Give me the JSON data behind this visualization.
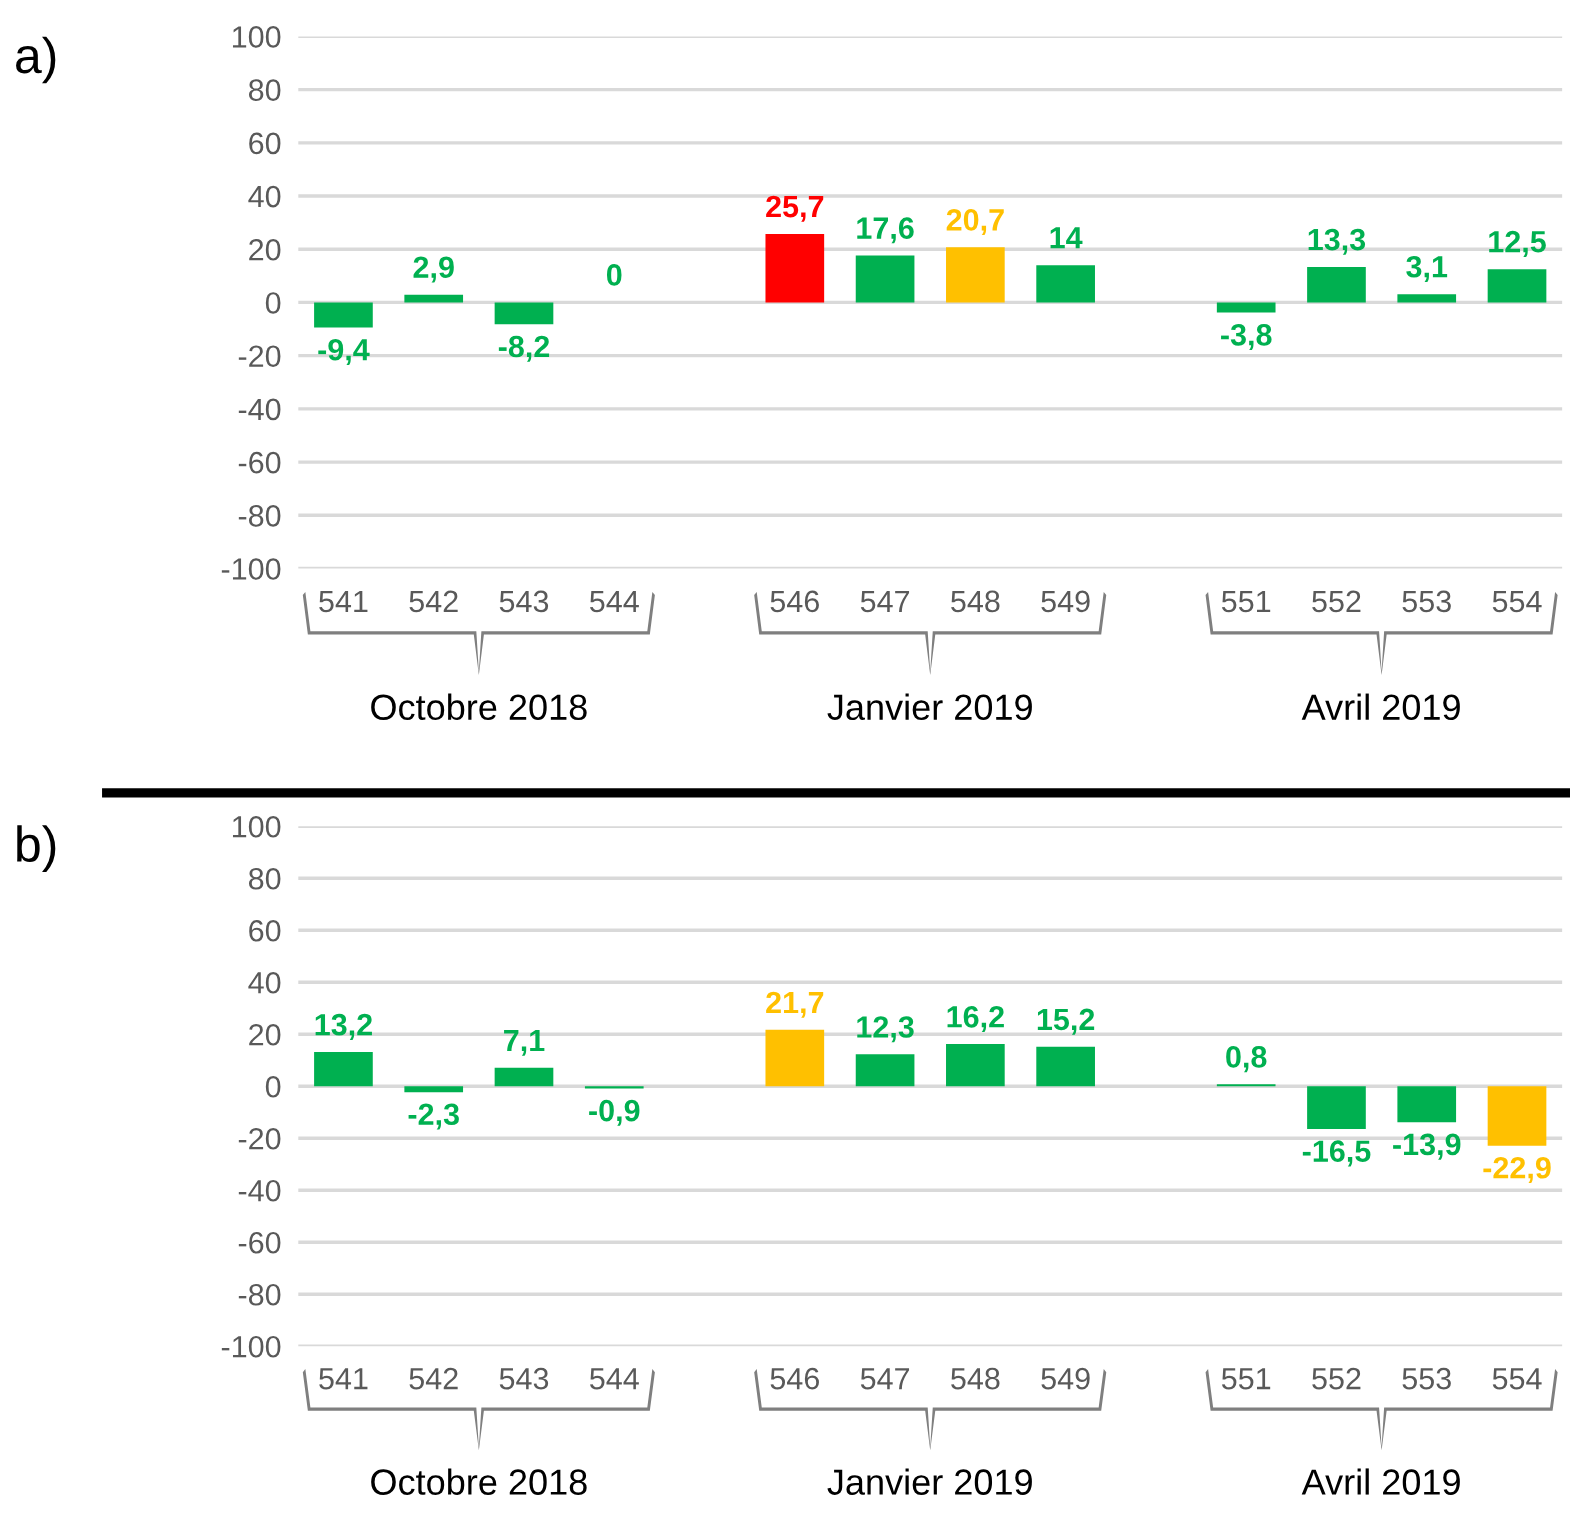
{
  "chart_data": [
    {
      "type": "bar",
      "title": "a)",
      "categories": [
        "541",
        "542",
        "543",
        "544",
        null,
        "546",
        "547",
        "548",
        "549",
        null,
        "551",
        "552",
        "553",
        "554"
      ],
      "values": [
        -9.4,
        2.9,
        -8.2,
        0,
        null,
        25.7,
        17.6,
        20.7,
        14,
        null,
        -3.8,
        13.3,
        3.1,
        12.5
      ],
      "value_labels": [
        "-9,4",
        "2,9",
        "-8,2",
        "0",
        null,
        "25,7",
        "17,6",
        "20,7",
        "14",
        null,
        "-3,8",
        "13,3",
        "3,1",
        "12,5"
      ],
      "colors": [
        "#00b050",
        "#00b050",
        "#00b050",
        "#00b050",
        null,
        "#ff0000",
        "#00b050",
        "#ffc000",
        "#00b050",
        null,
        "#00b050",
        "#00b050",
        "#00b050",
        "#00b050"
      ],
      "ylim": [
        -100,
        100
      ],
      "yticks": [
        -100,
        -80,
        -60,
        -40,
        -20,
        0,
        20,
        40,
        60,
        80,
        100
      ],
      "grid": true,
      "annotations": [
        "Octobre 2018",
        "Janvier 2019",
        "Avril 2019"
      ]
    },
    {
      "type": "bar",
      "title": "b)",
      "categories": [
        "541",
        "542",
        "543",
        "544",
        null,
        "546",
        "547",
        "548",
        "549",
        null,
        "551",
        "552",
        "553",
        "554"
      ],
      "values": [
        13.2,
        -2.3,
        7.1,
        -0.9,
        null,
        21.7,
        12.3,
        16.2,
        15.2,
        null,
        0.8,
        -16.5,
        -13.9,
        -22.9
      ],
      "value_labels": [
        "13,2",
        "-2,3",
        "7,1",
        "-0,9",
        null,
        "21,7",
        "12,3",
        "16,2",
        "15,2",
        null,
        "0,8",
        "-16,5",
        "-13,9",
        "-22,9"
      ],
      "colors": [
        "#00b050",
        "#00b050",
        "#00b050",
        "#00b050",
        null,
        "#ffc000",
        "#00b050",
        "#00b050",
        "#00b050",
        null,
        "#00b050",
        "#00b050",
        "#00b050",
        "#ffc000"
      ],
      "ylim": [
        -100,
        100
      ],
      "yticks": [
        -100,
        -80,
        -60,
        -40,
        -20,
        0,
        20,
        40,
        60,
        80,
        100
      ],
      "grid": true,
      "annotations": [
        "Octobre 2018",
        "Janvier 2019",
        "Avril 2019"
      ]
    }
  ]
}
